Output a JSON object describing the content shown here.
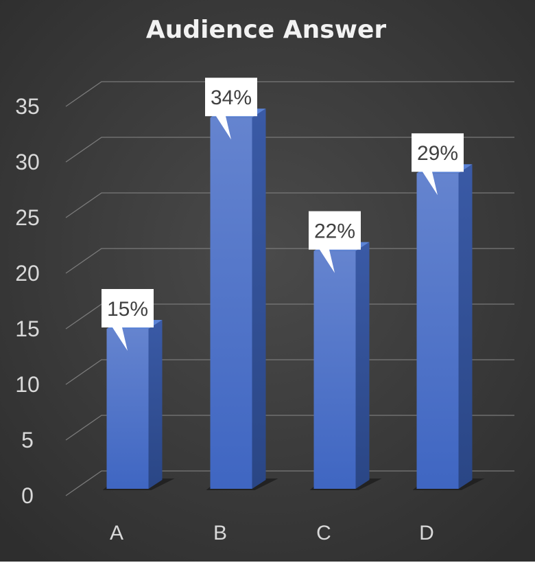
{
  "chart_data": {
    "type": "bar",
    "title": "Audience Answer",
    "categories": [
      "A",
      "B",
      "C",
      "D"
    ],
    "values": [
      15,
      34,
      22,
      29
    ],
    "data_labels": [
      "15%",
      "34%",
      "22%",
      "29%"
    ],
    "ylim": [
      0,
      35
    ],
    "yticks": [
      0,
      5,
      10,
      15,
      20,
      25,
      30,
      35
    ],
    "grid": true,
    "legend": "none",
    "style": "3d-column",
    "colors": {
      "background": "#404040",
      "bar_front": "#4a72c9",
      "bar_side": "#2e4f94",
      "bar_top": "#5b83d6",
      "gridline": "#7a7a7a",
      "text": "#d9d9d9",
      "label_box": "#ffffff"
    }
  }
}
